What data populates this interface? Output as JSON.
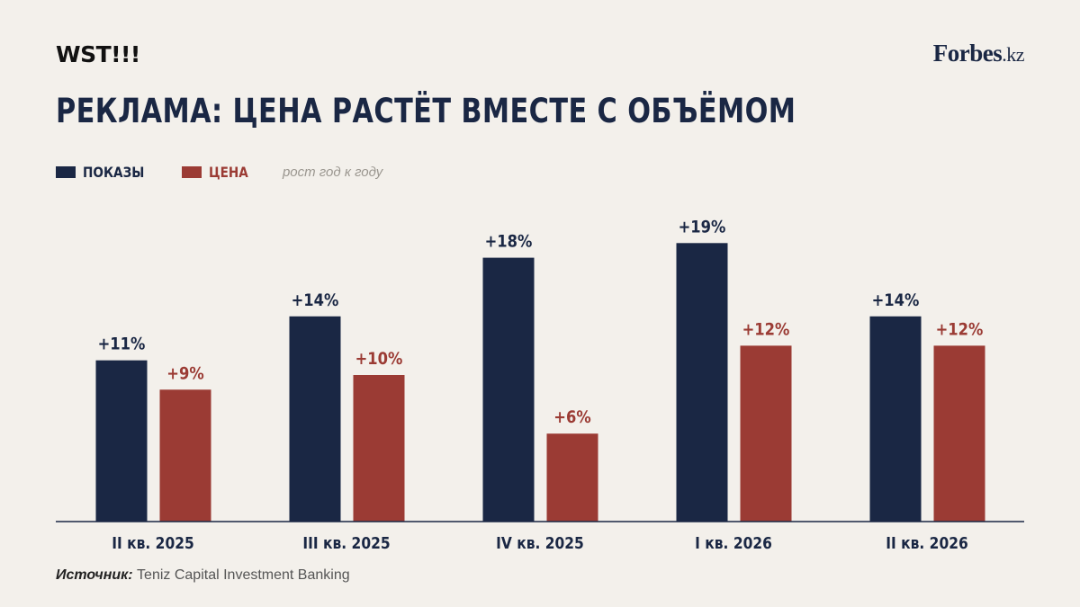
{
  "header": {
    "brand_left": "WST!!!",
    "brand_right_main": "Forbes",
    "brand_right_suffix": ".kz",
    "title": "РЕКЛАМА: ЦЕНА РАСТЁТ ВМЕСТЕ С ОБЪЁМОМ"
  },
  "legend": {
    "impressions_label": "ПОКАЗЫ",
    "price_label": "ЦЕНА",
    "note": "рост год к году"
  },
  "colors": {
    "impressions": "#1a2744",
    "price": "#9b3b34",
    "background": "#f3f0eb",
    "axis": "#1a2744"
  },
  "chart_data": {
    "type": "bar",
    "categories": [
      "II кв. 2025",
      "III кв. 2025",
      "IV кв. 2025",
      "I кв. 2026",
      "II кв. 2026"
    ],
    "series": [
      {
        "name": "ПОКАЗЫ",
        "values": [
          11,
          14,
          18,
          19,
          14
        ],
        "labels": [
          "+11%",
          "+14%",
          "+18%",
          "+19%",
          "+14%"
        ]
      },
      {
        "name": "ЦЕНА",
        "values": [
          9,
          10,
          6,
          12,
          12
        ],
        "labels": [
          "+9%",
          "+10%",
          "+6%",
          "+12%",
          "+12%"
        ]
      }
    ],
    "title": "РЕКЛАМА: ЦЕНА РАСТЁТ ВМЕСТЕ С ОБЪЁМОМ",
    "ylabel": "",
    "xlabel": "",
    "grid": false,
    "legend_position": "top-left"
  },
  "source": {
    "label": "Источник:",
    "text": " Teniz Capital Investment Banking"
  }
}
